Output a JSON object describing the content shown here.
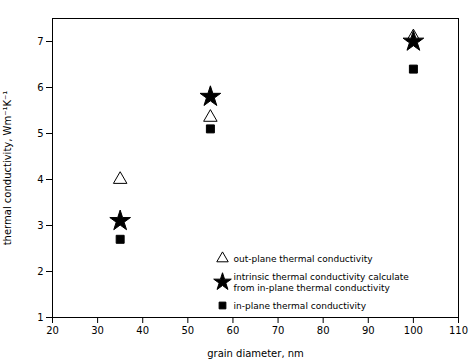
{
  "chart_data": {
    "type": "scatter",
    "xlabel": "grain diameter, nm",
    "ylabel": "thermal conductivity, Wm⁻¹K⁻¹",
    "series": [
      {
        "name": "out-plane thermal conductivity",
        "color": "black",
        "marker": "triangle-open",
        "x": [
          35,
          55,
          100
        ],
        "values": [
          4.0,
          5.35,
          7.1
        ]
      },
      {
        "name": "intrinsic thermal conductivity calculate\nfrom in-plane thermal conductivity",
        "color": "black",
        "marker": "star",
        "x": [
          35,
          55,
          100
        ],
        "values": [
          3.1,
          5.8,
          7.0
        ]
      },
      {
        "name": "in-plane thermal conductivity",
        "color": "black",
        "marker": "square",
        "x": [
          35,
          55,
          100
        ],
        "values": [
          2.7,
          5.1,
          6.4
        ]
      }
    ],
    "xlim": [
      20,
      110
    ],
    "ylim": [
      1,
      7.5
    ],
    "xticks": [
      20,
      30,
      40,
      50,
      60,
      70,
      80,
      90,
      100,
      110
    ],
    "yticks": [
      1,
      2,
      3,
      4,
      5,
      6,
      7
    ],
    "legend": "lower right",
    "grid": false
  }
}
